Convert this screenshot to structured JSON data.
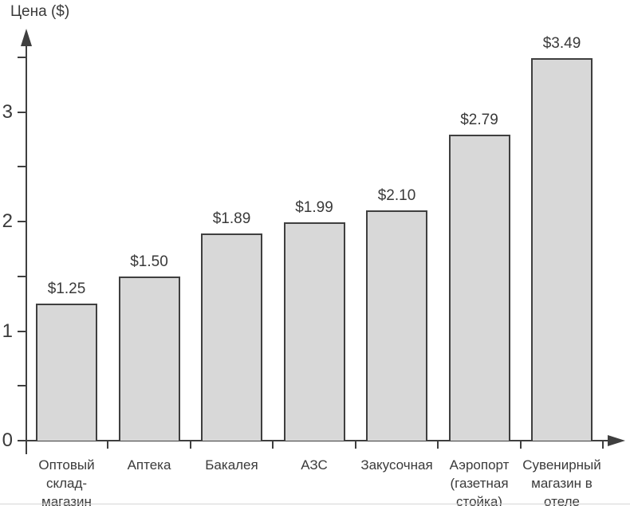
{
  "figure": {
    "y_axis_title": "Цена ($)"
  },
  "chart_data": {
    "type": "bar",
    "title": "",
    "xlabel": "",
    "ylabel": "Цена ($)",
    "categories": [
      "Оптовый склад-магазин",
      "Аптека",
      "Бакалея",
      "АЗС",
      "Закусочная",
      "Аэропорт (газетная стойка)",
      "Сувенирный магазин в отеле"
    ],
    "category_lines": [
      [
        "Оптовый",
        "склад-",
        "магазин"
      ],
      [
        "Аптека"
      ],
      [
        "Бакалея"
      ],
      [
        "АЗС"
      ],
      [
        "Закусочная"
      ],
      [
        "Аэропорт",
        "(газетная",
        "стойка)"
      ],
      [
        "Сувенирный",
        "магазин в",
        "отеле"
      ]
    ],
    "values": [
      1.25,
      1.5,
      1.89,
      1.99,
      2.1,
      2.79,
      3.49
    ],
    "bar_labels": [
      "$1.25",
      "$1.50",
      "$1.89",
      "$1.99",
      "$2.10",
      "$2.79",
      "$3.49"
    ],
    "y_ticks": [
      {
        "value": 0,
        "label": "0"
      },
      {
        "value": 0.5,
        "label": ""
      },
      {
        "value": 1,
        "label": "1"
      },
      {
        "value": 1.5,
        "label": ""
      },
      {
        "value": 2,
        "label": "2"
      },
      {
        "value": 2.5,
        "label": ""
      },
      {
        "value": 3,
        "label": "3"
      },
      {
        "value": 3.5,
        "label": ""
      }
    ],
    "ylim": [
      0,
      3.7
    ],
    "grid": "off",
    "legend": "none",
    "colors": {
      "bar_fill": "#d8d8d8",
      "bar_border": "#3f3f3f",
      "axis": "#3f3f3f",
      "text": "#3a3a3a"
    }
  }
}
